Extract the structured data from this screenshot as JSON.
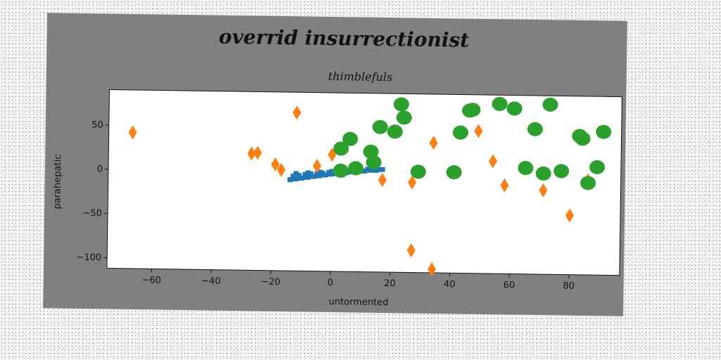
{
  "chart_data": {
    "type": "scatter",
    "title": "overrid insurrectionist",
    "subtitle": "thimblefuls",
    "xlabel": "untormented",
    "ylabel": "parahepatic",
    "xlim": [
      -75,
      97
    ],
    "ylim": [
      -112,
      90
    ],
    "xticks": [
      -60,
      -40,
      -20,
      0,
      20,
      40,
      60,
      80
    ],
    "yticks": [
      -100,
      -50,
      0,
      50
    ],
    "grid": false,
    "legend": "none",
    "series": [
      {
        "marker": "square",
        "color": "#1f77b4",
        "points": [
          [
            -14,
            -9
          ],
          [
            -13,
            -8
          ],
          [
            -12,
            -8
          ],
          [
            -11,
            -7
          ],
          [
            -10,
            -7
          ],
          [
            -9,
            -6
          ],
          [
            -8,
            -6
          ],
          [
            -7,
            -5
          ],
          [
            -6,
            -5
          ],
          [
            -5,
            -4
          ],
          [
            -4,
            -4
          ],
          [
            -3,
            -3
          ],
          [
            -2,
            -3
          ],
          [
            -1,
            -2
          ],
          [
            0,
            -2
          ],
          [
            1,
            -1
          ],
          [
            2,
            -1
          ],
          [
            3,
            0
          ],
          [
            4,
            0
          ],
          [
            5,
            0
          ],
          [
            6,
            1
          ],
          [
            7,
            1
          ],
          [
            8,
            1
          ],
          [
            9,
            2
          ],
          [
            10,
            2
          ],
          [
            11,
            2
          ],
          [
            12,
            3
          ],
          [
            13,
            3
          ],
          [
            14,
            3
          ],
          [
            15,
            3
          ],
          [
            16,
            4
          ],
          [
            17,
            4
          ],
          [
            -13,
            -5
          ],
          [
            -11,
            -4
          ],
          [
            -9,
            -3
          ],
          [
            -7,
            -2
          ],
          [
            -5,
            -2
          ],
          [
            -3,
            -1
          ],
          [
            -1,
            0
          ],
          [
            1,
            0
          ],
          [
            -12,
            -2
          ],
          [
            -8,
            -1
          ],
          [
            -4,
            0
          ],
          [
            0,
            1
          ],
          [
            3,
            2
          ],
          [
            6,
            2
          ],
          [
            9,
            4
          ],
          [
            12,
            4
          ]
        ]
      },
      {
        "marker": "diamond",
        "color": "#ff7f0e",
        "points": [
          [
            -67,
            42
          ],
          [
            -12,
            67
          ],
          [
            -27,
            20
          ],
          [
            -25,
            21
          ],
          [
            -19,
            8
          ],
          [
            -17,
            2
          ],
          [
            -5,
            7
          ],
          [
            0,
            20
          ],
          [
            17,
            -8
          ],
          [
            27,
            -10
          ],
          [
            34,
            35
          ],
          [
            49,
            49
          ],
          [
            54,
            15
          ],
          [
            58,
            -12
          ],
          [
            27,
            -87
          ],
          [
            34,
            -108
          ],
          [
            71,
            -17
          ],
          [
            80,
            -45
          ],
          [
            86,
            -5
          ]
        ]
      },
      {
        "marker": "circle",
        "color": "#2ca02c",
        "points": [
          [
            3,
            2
          ],
          [
            3,
            27
          ],
          [
            6,
            38
          ],
          [
            8,
            5
          ],
          [
            13,
            24
          ],
          [
            14,
            12
          ],
          [
            16,
            52
          ],
          [
            21,
            47
          ],
          [
            23,
            78
          ],
          [
            24,
            63
          ],
          [
            29,
            2
          ],
          [
            41,
            2
          ],
          [
            43,
            47
          ],
          [
            46,
            72
          ],
          [
            47,
            73
          ],
          [
            56,
            80
          ],
          [
            61,
            75
          ],
          [
            65,
            8
          ],
          [
            68,
            52
          ],
          [
            71,
            2
          ],
          [
            73,
            80
          ],
          [
            77,
            5
          ],
          [
            83,
            45
          ],
          [
            84,
            42
          ],
          [
            86,
            -8
          ],
          [
            89,
            10
          ],
          [
            91,
            50
          ]
        ]
      }
    ]
  }
}
